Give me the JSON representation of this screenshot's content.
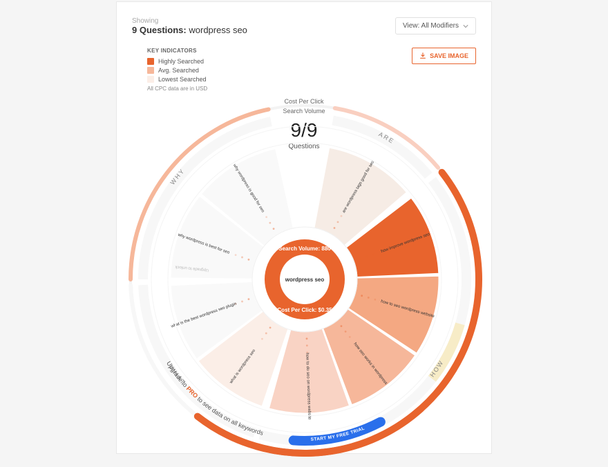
{
  "header": {
    "showing": "Showing",
    "count_label": "9 Questions:",
    "keyword": "wordpress seo",
    "dropdown_label": "View: All Modifiers"
  },
  "legend": {
    "title": "KEY INDICATORS",
    "items": [
      {
        "label": "Highly Searched",
        "color": "#e8642d"
      },
      {
        "label": "Avg. Searched",
        "color": "#f6b79a"
      },
      {
        "label": "Lowest Searched",
        "color": "#fbeee7"
      }
    ],
    "cpc_note": "All CPC data are in USD"
  },
  "save_button": "SAVE IMAGE",
  "top_labels": {
    "l1": "Cost Per Click",
    "l2": "Search Volume"
  },
  "summary": {
    "ratio": "9/9",
    "label": "Questions"
  },
  "center": {
    "keyword": "wordpress seo",
    "search_volume_label": "Search Volume:",
    "search_volume_value": "880",
    "cpc_label": "Cost Per Click:",
    "cpc_value": "$0.35",
    "ring_color": "#e8642d"
  },
  "colors": {
    "accent": "#e8642d",
    "outer_ring_bg": "#f3f3f3",
    "group_ring_bg": "#f7f7f7",
    "gridline": "#f0f0f0",
    "cream": "#f7ecc7",
    "blue": "#2a6feb",
    "text": "#555555",
    "background": "#ffffff"
  },
  "chart": {
    "type": "sunburst",
    "outer_radius": 252,
    "inner_radius": 58,
    "group_label_radius": 234,
    "question_radius": 194,
    "groups": [
      {
        "name": "ARE",
        "start_deg": 10,
        "end_deg": 50,
        "arc_color": "#f9cfc0",
        "arc_thickness": 6,
        "questions": [
          {
            "text": "are wordpress tags good for seo",
            "intensity": "#f6ece5",
            "font": 6
          }
        ]
      },
      {
        "name": "HOW",
        "start_deg": 52,
        "end_deg": 196,
        "arc_color": "#e8642d",
        "arc_thickness": 10,
        "tail_extra": {
          "color": "#f7ecc7",
          "from_deg": 106,
          "to_deg": 128,
          "label": "30"
        },
        "questions": [
          {
            "text": "how improve wordpress seo",
            "intensity": "#e8642d",
            "font": 6
          },
          {
            "text": "how to seo wordpress website",
            "intensity": "#f4a882",
            "font": 6
          },
          {
            "text": "how seo works in wordpress",
            "intensity": "#f6b79a",
            "font": 6
          },
          {
            "text": "how to do seo on wordpress website",
            "intensity": "#f9d3c4",
            "font": 6
          }
        ]
      },
      {
        "name": "WHAT",
        "start_deg": 198,
        "end_deg": 268,
        "arc_color": "#f7f7f7",
        "arc_thickness": 6,
        "questions": [
          {
            "text": "what is wordpress seo",
            "intensity": "#fbeee7",
            "font": 6
          },
          {
            "text": "what is the best wordpress seo plugin",
            "intensity": "#f9f9f9",
            "font": 6
          }
        ]
      },
      {
        "name": "WHY",
        "start_deg": 270,
        "end_deg": 348,
        "arc_color": "#f6b79a",
        "arc_thickness": 6,
        "questions": [
          {
            "text": "why wordpress is best for seo",
            "intensity": "#f9f9f9",
            "font": 6
          },
          {
            "text": "why wordpress is good for seo",
            "intensity": "#f9f9f9",
            "font": 6
          }
        ],
        "locked_label": "Upgrade to unlock"
      }
    ]
  },
  "upgrade": {
    "prefix": "Upgrade to ",
    "pro": "PRO",
    "suffix": " to see data on all keywords",
    "trial_button": "START MY FREE TRIAL"
  }
}
